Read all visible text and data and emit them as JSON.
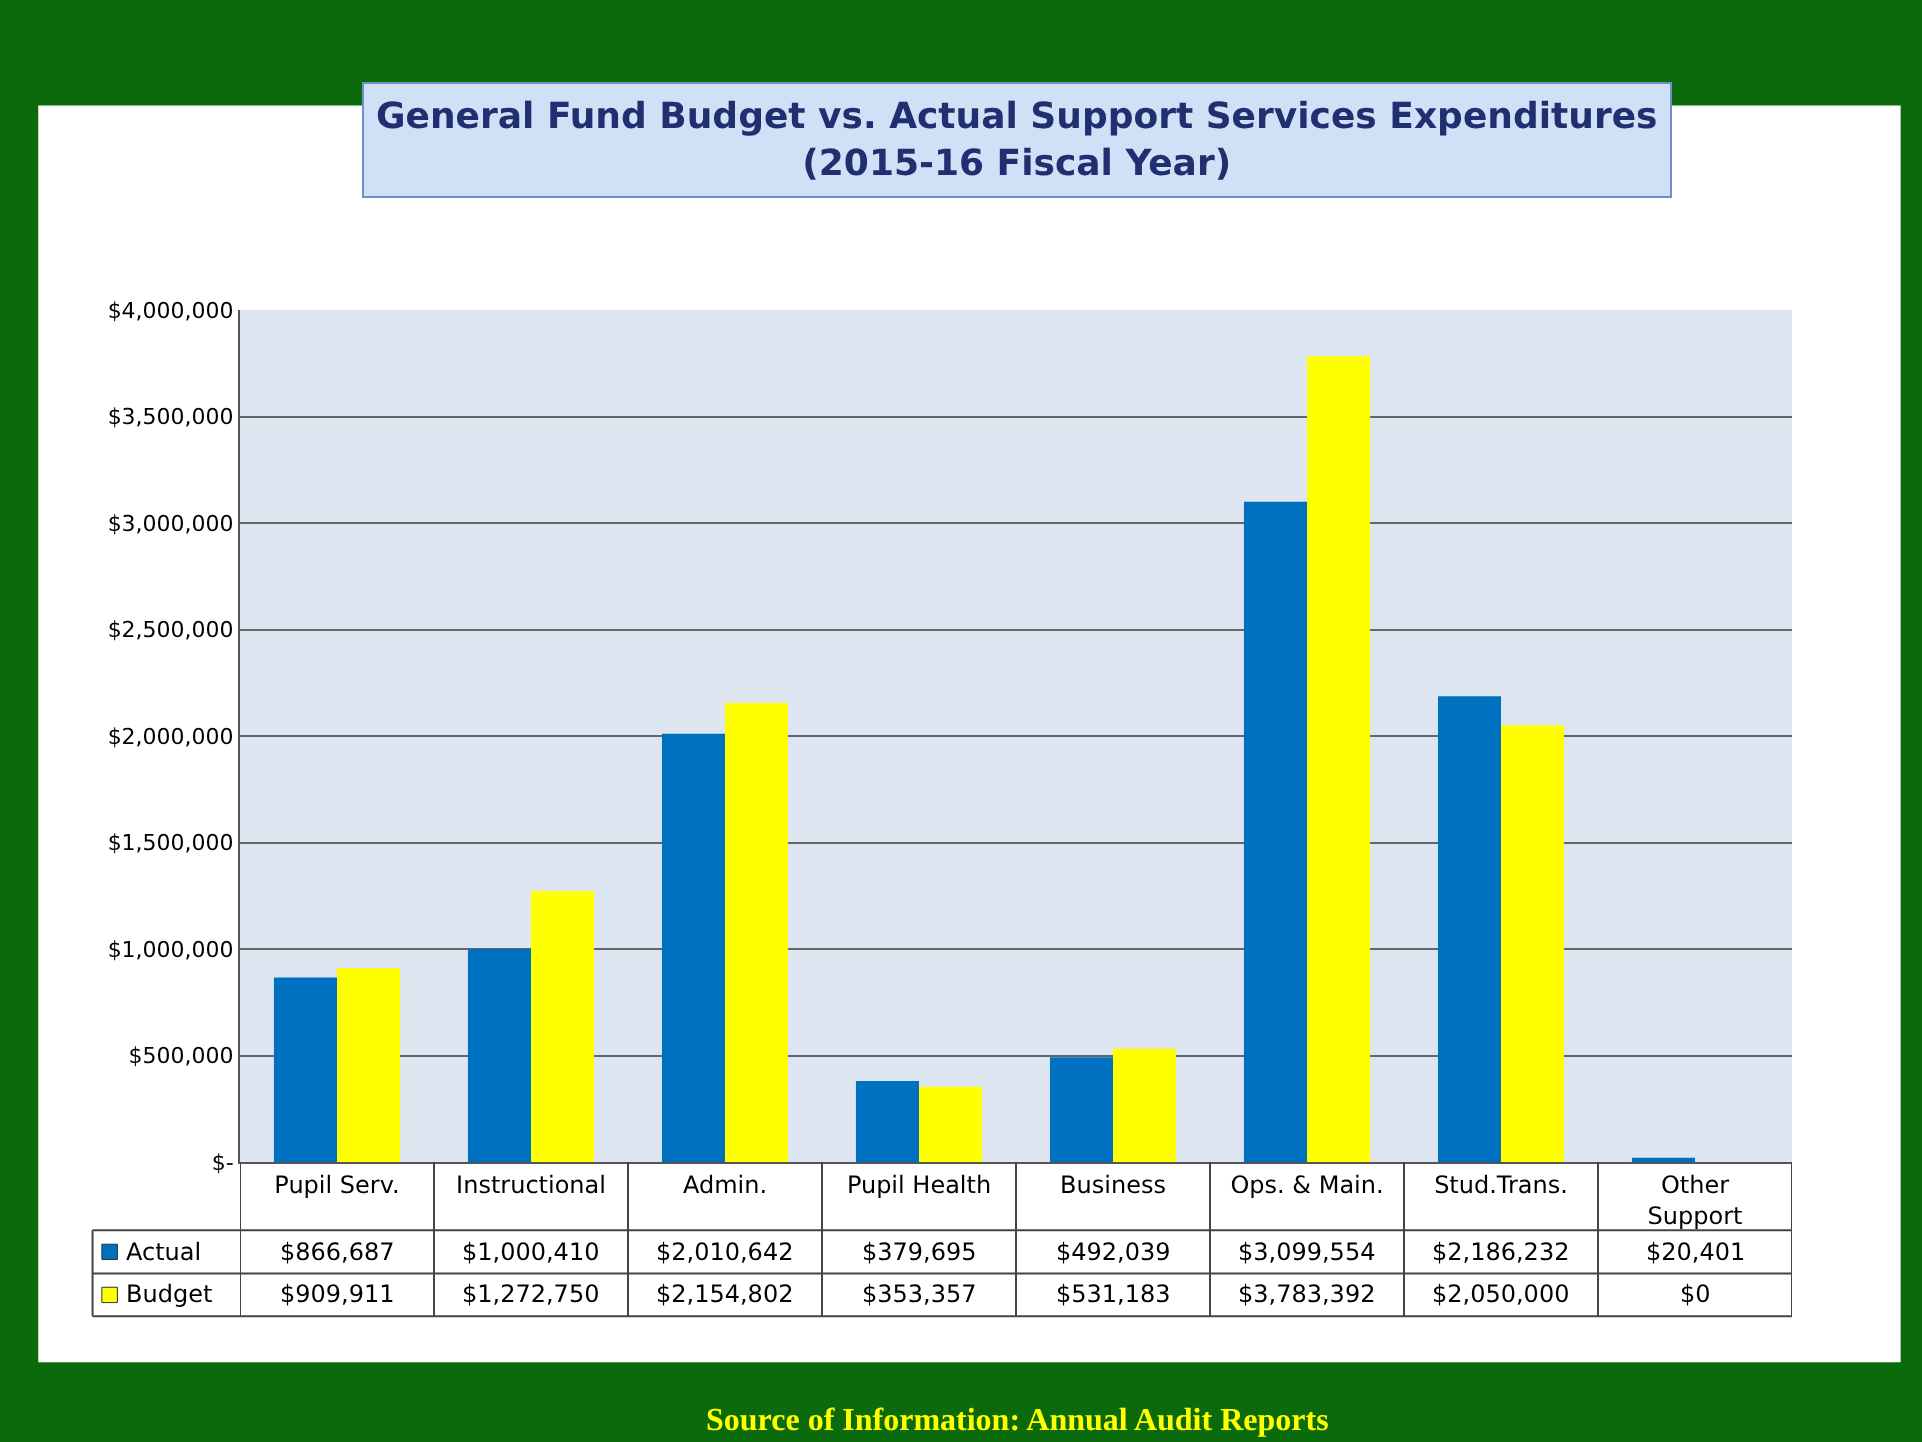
{
  "chart_data": {
    "type": "bar",
    "title": "General Fund Budget vs. Actual Support Services Expenditures\n(2015-16 Fiscal Year)",
    "categories": [
      "Pupil Serv.",
      "Instructional",
      "Admin.",
      "Pupil Health",
      "Business",
      "Ops. & Main.",
      "Stud.Trans.",
      "Other Support"
    ],
    "series": [
      {
        "name": "Actual",
        "color": "#0070c0",
        "values": [
          866687,
          1000410,
          2010642,
          379695,
          492039,
          3099554,
          2186232,
          20401
        ],
        "value_labels": [
          "$866,687",
          "$1,000,410",
          "$2,010,642",
          "$379,695",
          "$492,039",
          "$3,099,554",
          "$2,186,232",
          "$20,401"
        ]
      },
      {
        "name": "Budget",
        "color": "#ffff00",
        "values": [
          909911,
          1272750,
          2154802,
          353357,
          531183,
          3783392,
          2050000,
          0
        ],
        "value_labels": [
          "$909,911",
          "$1,272,750",
          "$2,154,802",
          "$353,357",
          "$531,183",
          "$3,783,392",
          "$2,050,000",
          "$0"
        ]
      }
    ],
    "ylim": [
      0,
      4000000
    ],
    "yticks": [
      {
        "value": 0,
        "label": "$-"
      },
      {
        "value": 500000,
        "label": "$500,000"
      },
      {
        "value": 1000000,
        "label": "$1,000,000"
      },
      {
        "value": 1500000,
        "label": "$1,500,000"
      },
      {
        "value": 2000000,
        "label": "$2,000,000"
      },
      {
        "value": 2500000,
        "label": "$2,500,000"
      },
      {
        "value": 3000000,
        "label": "$3,000,000"
      },
      {
        "value": 3500000,
        "label": "$3,500,000"
      },
      {
        "value": 4000000,
        "label": "$4,000,000"
      }
    ],
    "grid": "y",
    "legend": "bottom",
    "annotations": [
      "Source of Information: Annual Audit Reports"
    ]
  }
}
